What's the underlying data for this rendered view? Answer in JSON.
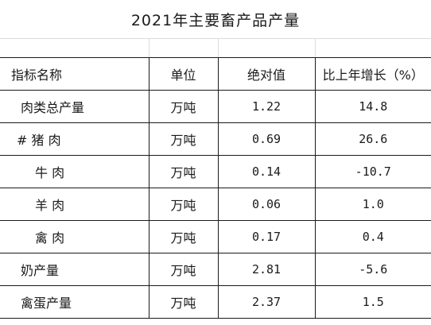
{
  "title": "2021年主要畜产品产量",
  "headers": {
    "name": "指标名称",
    "unit": "单位",
    "value": "绝对值",
    "growth": "比上年增长（%）"
  },
  "rows": [
    {
      "name": "肉类总产量",
      "unit": "万吨",
      "value": "1.22",
      "growth": "14.8"
    },
    {
      "name": "# 猪 肉",
      "unit": "万吨",
      "value": "0.69",
      "growth": "26.6"
    },
    {
      "name": "牛 肉",
      "unit": "万吨",
      "value": "0.14",
      "growth": "-10.7"
    },
    {
      "name": "羊 肉",
      "unit": "万吨",
      "value": "0.06",
      "growth": "1.0"
    },
    {
      "name": "禽 肉",
      "unit": "万吨",
      "value": "0.17",
      "growth": "0.4"
    },
    {
      "name": "奶产量",
      "unit": "万吨",
      "value": "2.81",
      "growth": "-5.6"
    },
    {
      "name": "禽蛋产量",
      "unit": "万吨",
      "value": "2.37",
      "growth": "1.5"
    }
  ]
}
